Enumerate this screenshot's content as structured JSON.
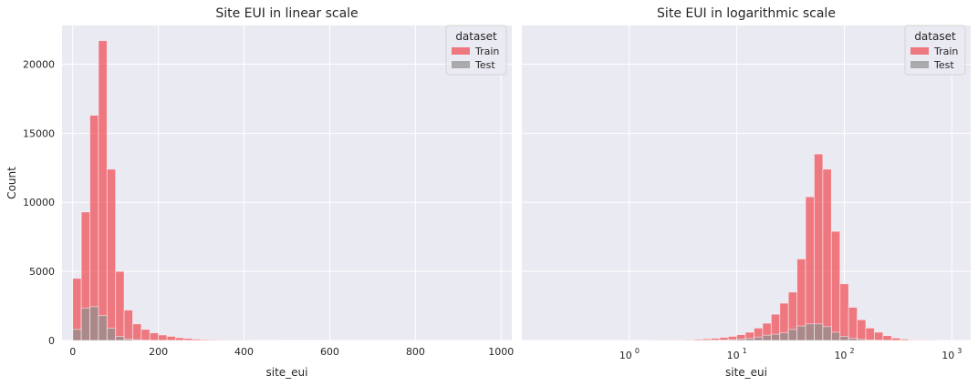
{
  "colors": {
    "train": "#f0474f",
    "test": "#8f8f8f",
    "background": "#eaeaf2",
    "grid": "#ffffff"
  },
  "chart_data": [
    {
      "type": "bar",
      "title": "Site EUI in linear scale",
      "xlabel": "site_eui",
      "ylabel": "Count",
      "xscale": "linear",
      "xlim": [
        -25,
        1025
      ],
      "ylim": [
        0,
        22800
      ],
      "xticks": [
        0,
        200,
        400,
        600,
        800,
        1000
      ],
      "yticks": [
        0,
        5000,
        10000,
        15000,
        20000
      ],
      "grid": true,
      "legend": {
        "title": "dataset",
        "position": "top-right"
      },
      "bin_edges": [
        0,
        20,
        40,
        60,
        80,
        100,
        120,
        140,
        160,
        180,
        200,
        220,
        240,
        260,
        280,
        300,
        320,
        340,
        360,
        380,
        400,
        420,
        440,
        460,
        480,
        500,
        520,
        540,
        560,
        580,
        600,
        620,
        640,
        660,
        680,
        700,
        720,
        740,
        760,
        780,
        800,
        820,
        840,
        860,
        880,
        900,
        920,
        940,
        960,
        980,
        1000
      ],
      "series": [
        {
          "name": "Train",
          "values": [
            4500,
            9300,
            16300,
            21700,
            12400,
            5000,
            2200,
            1200,
            800,
            550,
            400,
            300,
            200,
            150,
            100,
            60,
            40,
            25,
            15,
            10,
            8,
            6,
            5,
            4,
            3,
            3,
            2,
            2,
            2,
            2,
            1,
            1,
            1,
            1,
            1,
            1,
            1,
            1,
            1,
            1,
            1,
            1,
            1,
            1,
            1,
            1,
            1,
            1,
            1,
            1
          ]
        },
        {
          "name": "Test",
          "values": [
            800,
            2350,
            2450,
            1800,
            900,
            300,
            100,
            50,
            25,
            10,
            5,
            3,
            2,
            1,
            1,
            0,
            0,
            0,
            0,
            0,
            0,
            0,
            0,
            0,
            0,
            0,
            0,
            0,
            0,
            0,
            0,
            0,
            0,
            0,
            0,
            0,
            0,
            0,
            0,
            0,
            0,
            0,
            0,
            0,
            0,
            0,
            0,
            0,
            0,
            0
          ]
        }
      ]
    },
    {
      "type": "bar",
      "title": "Site EUI in logarithmic scale",
      "xlabel": "site_eui",
      "ylabel": "",
      "xscale": "log",
      "xlim": [
        0.1,
        1500
      ],
      "ylim": [
        0,
        22800
      ],
      "xticks": [
        1,
        10,
        100,
        1000
      ],
      "xtick_labels": [
        {
          "base": "10",
          "exp": "0"
        },
        {
          "base": "10",
          "exp": "1"
        },
        {
          "base": "10",
          "exp": "2"
        },
        {
          "base": "10",
          "exp": "3"
        }
      ],
      "yticks": [
        0,
        5000,
        10000,
        15000,
        20000
      ],
      "grid": true,
      "legend": {
        "title": "dataset",
        "position": "top-right"
      },
      "log_bins": {
        "start": 0.1,
        "end": 1000,
        "count": 50
      },
      "series": [
        {
          "name": "Train",
          "values": [
            0,
            0,
            0,
            0,
            0,
            0,
            0,
            0,
            0,
            0,
            0,
            5,
            5,
            5,
            5,
            10,
            10,
            20,
            40,
            60,
            90,
            120,
            160,
            220,
            300,
            420,
            600,
            900,
            1250,
            1900,
            2700,
            3500,
            5900,
            10400,
            13500,
            12400,
            7900,
            4100,
            2400,
            1500,
            900,
            600,
            350,
            180,
            100,
            50,
            25,
            12,
            6,
            3
          ]
        },
        {
          "name": "Test",
          "values": [
            0,
            0,
            0,
            0,
            0,
            0,
            0,
            0,
            0,
            0,
            0,
            0,
            0,
            0,
            0,
            0,
            0,
            0,
            5,
            10,
            15,
            25,
            30,
            40,
            60,
            100,
            150,
            250,
            380,
            450,
            550,
            800,
            1050,
            1200,
            1200,
            1000,
            600,
            300,
            150,
            80,
            40,
            20,
            10,
            5,
            2,
            1,
            0,
            0,
            0,
            0
          ]
        }
      ]
    }
  ]
}
